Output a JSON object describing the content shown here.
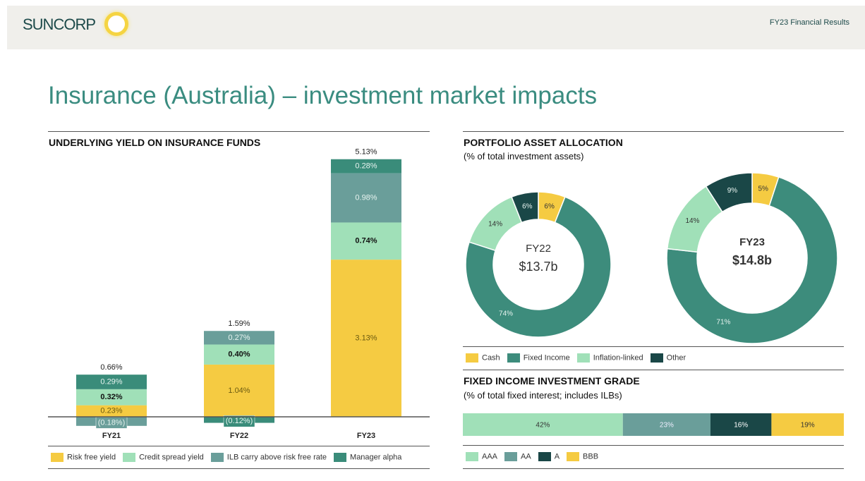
{
  "header": {
    "logo": "SUNCORP",
    "right": "FY23 Financial Results"
  },
  "title": "Insurance (Australia) – investment market impacts",
  "colors": {
    "risk_free": "#f5cb42",
    "credit": "#a0e0b8",
    "ilb": "#6a9e9a",
    "alpha": "#3a8c7a",
    "cash": "#f5cb42",
    "fixed": "#3d8c7c",
    "inflation": "#a0e0b8",
    "other": "#1a4747"
  },
  "chart_data": [
    {
      "type": "bar",
      "title": "UNDERLYING YIELD ON INSURANCE FUNDS",
      "categories": [
        "FY21",
        "FY22",
        "FY23"
      ],
      "series": [
        {
          "name": "Risk free yield",
          "key": "risk_free",
          "values": [
            0.23,
            1.04,
            3.13
          ],
          "labels": [
            "0.23%",
            "1.04%",
            "3.13%"
          ]
        },
        {
          "name": "Credit spread yield",
          "key": "credit",
          "values": [
            0.32,
            0.4,
            0.74
          ],
          "labels": [
            "0.32%",
            "0.40%",
            "0.74%"
          ]
        },
        {
          "name": "ILB carry above risk free rate",
          "key": "ilb",
          "values": [
            -0.18,
            0.27,
            0.98
          ],
          "labels": [
            "(0.18%)",
            "0.27%",
            "0.98%"
          ]
        },
        {
          "name": "Manager alpha",
          "key": "alpha",
          "values": [
            0.29,
            -0.12,
            0.28
          ],
          "labels": [
            "0.29%",
            "(0.12%)",
            "0.28%"
          ]
        }
      ],
      "totals": [
        "0.66%",
        "1.59%",
        "5.13%"
      ]
    },
    {
      "type": "pie",
      "title": "PORTFOLIO ASSET ALLOCATION",
      "subtitle": "(% of total investment assets)",
      "categories": [
        "Cash",
        "Fixed Income",
        "Inflation-linked",
        "Other"
      ],
      "charts": [
        {
          "name": "FY22",
          "total": "$13.7b",
          "values": [
            6,
            74,
            14,
            6
          ]
        },
        {
          "name": "FY23",
          "total": "$14.8b",
          "values": [
            5,
            71,
            14,
            9
          ]
        }
      ]
    },
    {
      "type": "bar",
      "title": "FIXED INCOME INVESTMENT GRADE",
      "subtitle": "(% of total fixed interest; includes ILBs)",
      "categories": [
        "AAA",
        "AA",
        "A",
        "BBB"
      ],
      "values": [
        42,
        23,
        16,
        19
      ],
      "colors": [
        "#a0e0b8",
        "#6a9e9a",
        "#1a4747",
        "#f5cb42"
      ]
    }
  ]
}
